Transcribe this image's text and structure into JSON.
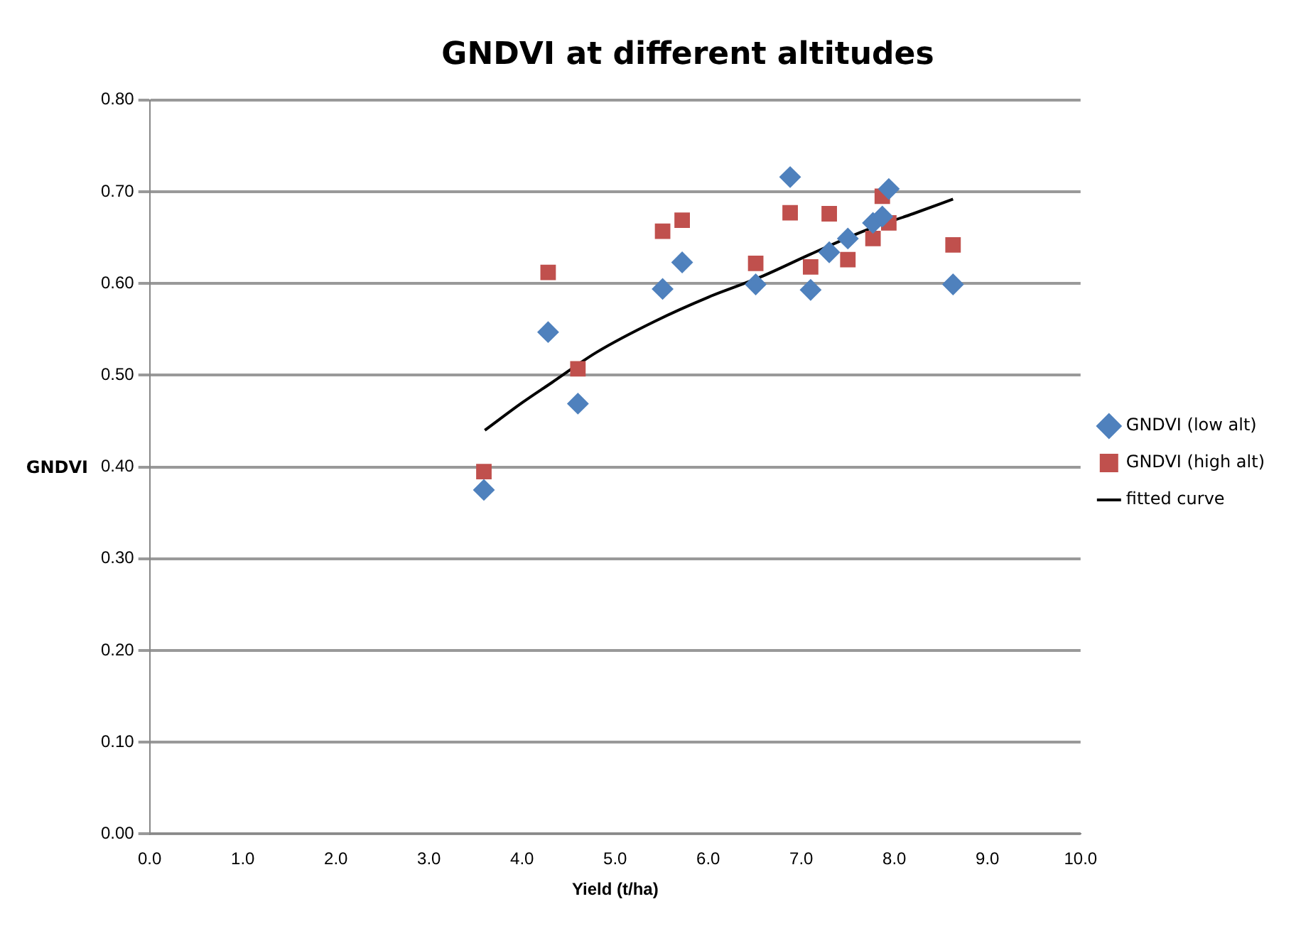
{
  "chart_data": {
    "type": "scatter",
    "title": "GNDVI at different altitudes",
    "xlabel": "Yield (t/ha)",
    "ylabel": "GNDVI",
    "xlim": [
      0,
      10
    ],
    "ylim": [
      0,
      0.8
    ],
    "xticks": [
      {
        "value": 0,
        "label": "0.0"
      },
      {
        "value": 1,
        "label": "1.0"
      },
      {
        "value": 2,
        "label": "2.0"
      },
      {
        "value": 3,
        "label": "3.0"
      },
      {
        "value": 4,
        "label": "4.0"
      },
      {
        "value": 5,
        "label": "5.0"
      },
      {
        "value": 6,
        "label": "6.0"
      },
      {
        "value": 7,
        "label": "7.0"
      },
      {
        "value": 8,
        "label": "8.0"
      },
      {
        "value": 9,
        "label": "9.0"
      },
      {
        "value": 10,
        "label": "10.0"
      }
    ],
    "yticks": [
      {
        "value": 0,
        "label": "0.00"
      },
      {
        "value": 0.1,
        "label": "0.10"
      },
      {
        "value": 0.2,
        "label": "0.20"
      },
      {
        "value": 0.3,
        "label": "0.30"
      },
      {
        "value": 0.4,
        "label": "0.40"
      },
      {
        "value": 0.5,
        "label": "0.50"
      },
      {
        "value": 0.6,
        "label": "0.60"
      },
      {
        "value": 0.7,
        "label": "0.70"
      },
      {
        "value": 0.8,
        "label": "0.80"
      }
    ],
    "grid": "y",
    "legend": "right",
    "series": [
      {
        "name": "GNDVI (low alt)",
        "color": "#4f81bd",
        "marker": "diamond",
        "x": [
          3.59,
          4.28,
          4.6,
          5.51,
          5.72,
          6.51,
          6.88,
          7.1,
          7.3,
          7.5,
          7.77,
          7.87,
          7.94,
          8.63
        ],
        "values": [
          0.375,
          0.547,
          0.469,
          0.594,
          0.623,
          0.599,
          0.716,
          0.593,
          0.634,
          0.649,
          0.666,
          0.673,
          0.703,
          0.599
        ]
      },
      {
        "name": "GNDVI (high alt)",
        "color": "#c0504d",
        "marker": "square",
        "x": [
          3.59,
          4.28,
          4.6,
          5.51,
          5.72,
          6.51,
          6.88,
          7.1,
          7.3,
          7.5,
          7.77,
          7.87,
          7.94,
          8.63
        ],
        "values": [
          0.395,
          0.612,
          0.507,
          0.657,
          0.669,
          0.622,
          0.677,
          0.618,
          0.676,
          0.626,
          0.649,
          0.695,
          0.666,
          0.642
        ]
      },
      {
        "name": "fitted curve",
        "type": "line",
        "color": "#000000",
        "marker": "none",
        "x": [
          3.6,
          4.0,
          4.32,
          4.8,
          5.43,
          6.0,
          6.56,
          7.1,
          7.69,
          8.2,
          8.63
        ],
        "values": [
          0.44,
          0.47,
          0.492,
          0.525,
          0.559,
          0.585,
          0.607,
          0.632,
          0.658,
          0.676,
          0.692
        ]
      }
    ]
  }
}
